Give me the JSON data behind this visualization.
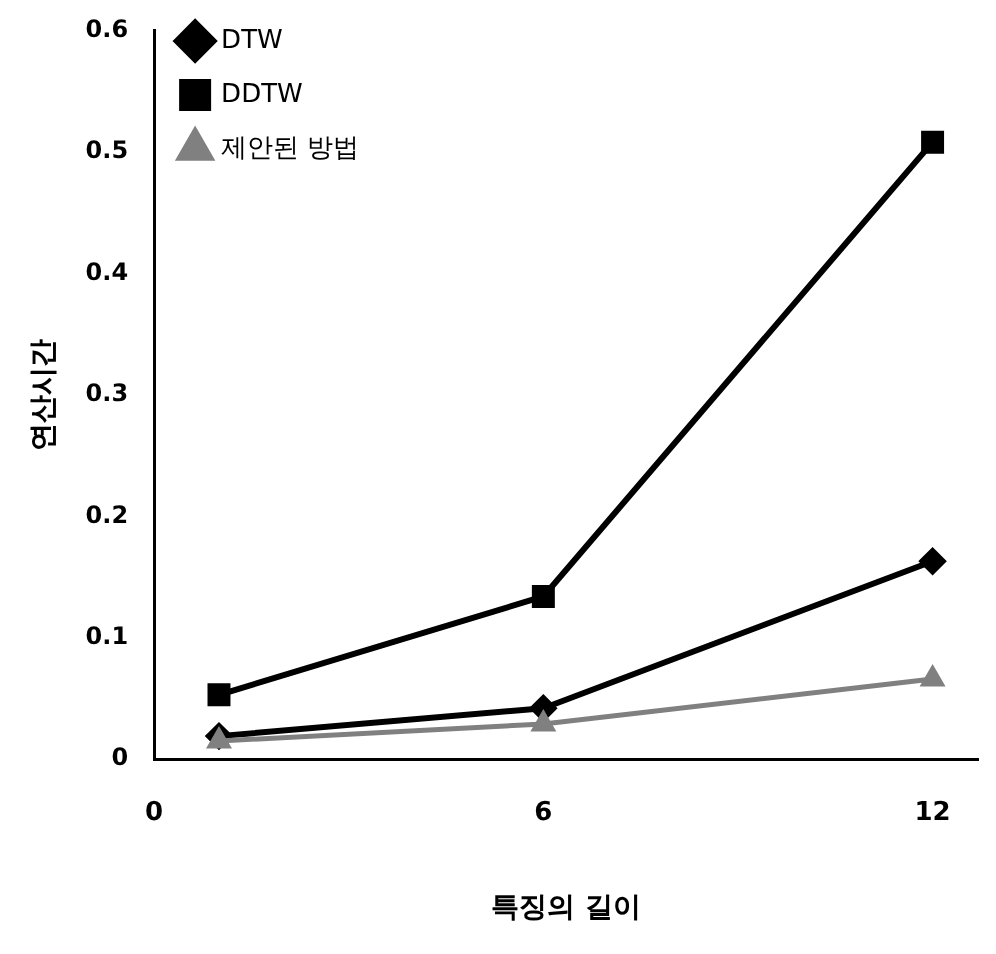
{
  "chart_data": {
    "type": "line",
    "xlabel": "특징의 길이",
    "ylabel": "연산시간",
    "x": [
      1,
      6,
      12
    ],
    "xlim": [
      0,
      12.7
    ],
    "xticks": [
      0,
      6,
      12
    ],
    "ylim": [
      0,
      0.6
    ],
    "yticks": [
      0,
      0.1,
      0.2,
      0.3,
      0.4,
      0.5,
      0.6
    ],
    "grid": false,
    "legend": "top left",
    "line_style": "solid",
    "series": [
      {
        "name": "DTW",
        "color": "#000000",
        "marker": "diamond",
        "values": [
          0.019,
          0.042,
          0.163
        ]
      },
      {
        "name": "DDTW",
        "color": "#000000",
        "marker": "square",
        "values": [
          0.053,
          0.134,
          0.508
        ]
      },
      {
        "name": "제안된 방법",
        "color": "#808080",
        "marker": "triangle",
        "values": [
          0.015,
          0.029,
          0.066
        ]
      }
    ]
  }
}
